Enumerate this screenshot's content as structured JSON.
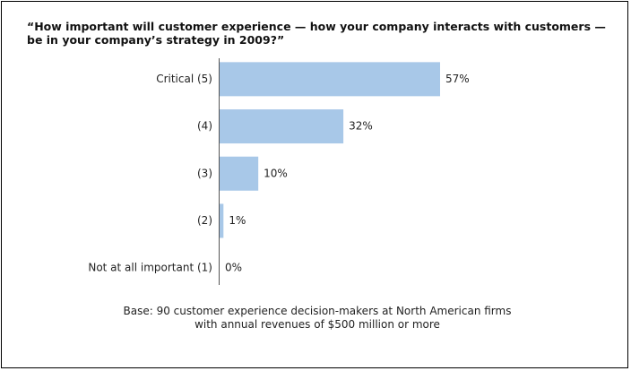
{
  "chart_data": {
    "type": "bar",
    "orientation": "horizontal",
    "title": "“How important will customer experience — how your company interacts with customers — be in your company’s strategy in 2009?”",
    "categories": [
      "Critical (5)",
      "(4)",
      "(3)",
      "(2)",
      "Not at all important (1)"
    ],
    "values": [
      57,
      32,
      10,
      1,
      0
    ],
    "value_labels": [
      "57%",
      "32%",
      "10%",
      "1%",
      "0%"
    ],
    "color": "#a8c8e8",
    "note": "Base: 90 customer experience decision-makers at North American firms with annual revenues of $500 million or more"
  }
}
